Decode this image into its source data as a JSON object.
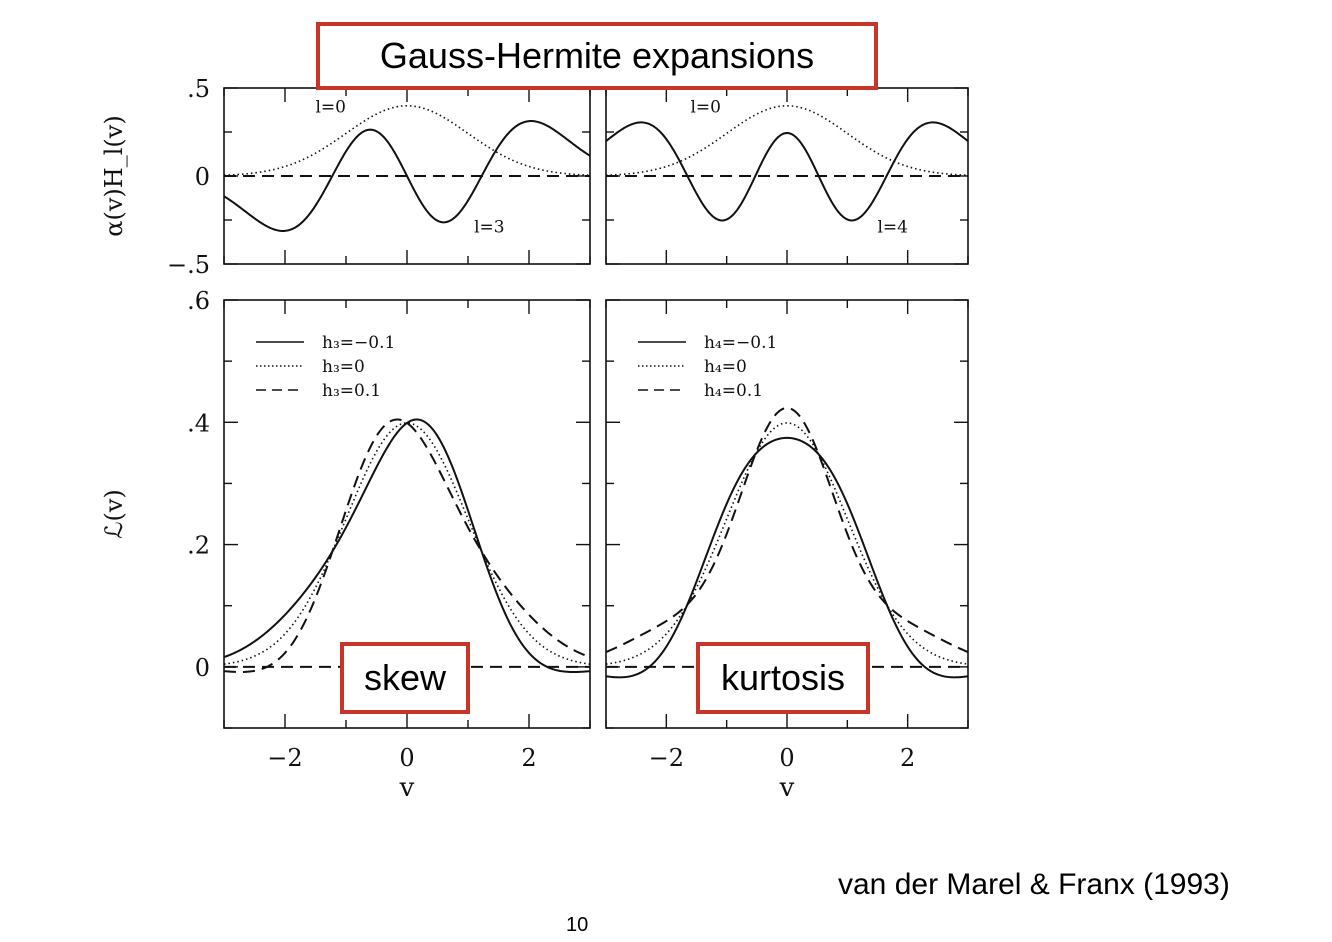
{
  "title": "Gauss-Hermite expansions",
  "labels": {
    "skew": "skew",
    "kurtosis": "kurtosis"
  },
  "citation": "van der Marel & Franx (1993)",
  "page_number": "10",
  "chart_data": [
    {
      "type": "line",
      "panel": "top-left",
      "xlim": [
        -3,
        3
      ],
      "ylim": [
        -0.5,
        0.5
      ],
      "ylabel": "α(v)H_l(v)",
      "ytick_labels": [
        ".5",
        "0",
        "−.5"
      ],
      "ytick_values": [
        0.5,
        0,
        -0.5
      ],
      "series": [
        {
          "name": "l=0",
          "style": "dotted",
          "kind": "alphaH",
          "l": 0
        },
        {
          "name": "l=3",
          "style": "solid",
          "kind": "alphaH",
          "l": 3
        },
        {
          "style": "dashed",
          "kind": "zero"
        }
      ],
      "annotations": [
        {
          "text": "l=0",
          "x": -1.5,
          "y": 0.36
        },
        {
          "text": "l=3",
          "x": 1.1,
          "y": -0.32
        }
      ]
    },
    {
      "type": "line",
      "panel": "top-right",
      "xlim": [
        -3,
        3
      ],
      "ylim": [
        -0.5,
        0.5
      ],
      "series": [
        {
          "name": "l=0",
          "style": "dotted",
          "kind": "alphaH",
          "l": 0
        },
        {
          "name": "l=4",
          "style": "solid",
          "kind": "alphaH",
          "l": 4
        },
        {
          "style": "dashed",
          "kind": "zero"
        }
      ],
      "annotations": [
        {
          "text": "l=0",
          "x": -1.6,
          "y": 0.36
        },
        {
          "text": "l=4",
          "x": 1.5,
          "y": -0.32
        }
      ]
    },
    {
      "type": "line",
      "panel": "bottom-left",
      "xlim": [
        -3,
        3
      ],
      "ylim": [
        -0.1,
        0.6
      ],
      "xlabel": "v",
      "ylabel": "ℒ(v)",
      "xtick_labels": [
        "−2",
        "0",
        "2"
      ],
      "xtick_values": [
        -2,
        0,
        2
      ],
      "ytick_labels": [
        ".6",
        ".4",
        ".2",
        "0"
      ],
      "ytick_values": [
        0.6,
        0.4,
        0.2,
        0
      ],
      "legend": "top-left",
      "series": [
        {
          "name": "h₃=−0.1",
          "style": "solid",
          "kind": "gh",
          "l": 3,
          "h": -0.1
        },
        {
          "name": "h₃=0",
          "style": "dotted",
          "kind": "gh",
          "l": 3,
          "h": 0
        },
        {
          "name": "h₃=0.1",
          "style": "dashed",
          "kind": "gh",
          "l": 3,
          "h": 0.1
        },
        {
          "style": "dashed",
          "kind": "zero"
        }
      ]
    },
    {
      "type": "line",
      "panel": "bottom-right",
      "xlim": [
        -3,
        3
      ],
      "ylim": [
        -0.1,
        0.6
      ],
      "xlabel": "v",
      "xtick_labels": [
        "−2",
        "0",
        "2"
      ],
      "xtick_values": [
        -2,
        0,
        2
      ],
      "legend": "top-left",
      "series": [
        {
          "name": "h₄=−0.1",
          "style": "solid",
          "kind": "gh",
          "l": 4,
          "h": -0.1
        },
        {
          "name": "h₄=0",
          "style": "dotted",
          "kind": "gh",
          "l": 4,
          "h": 0
        },
        {
          "name": "h₄=0.1",
          "style": "dashed",
          "kind": "gh",
          "l": 4,
          "h": 0.1
        },
        {
          "style": "dashed",
          "kind": "zero"
        }
      ]
    }
  ]
}
